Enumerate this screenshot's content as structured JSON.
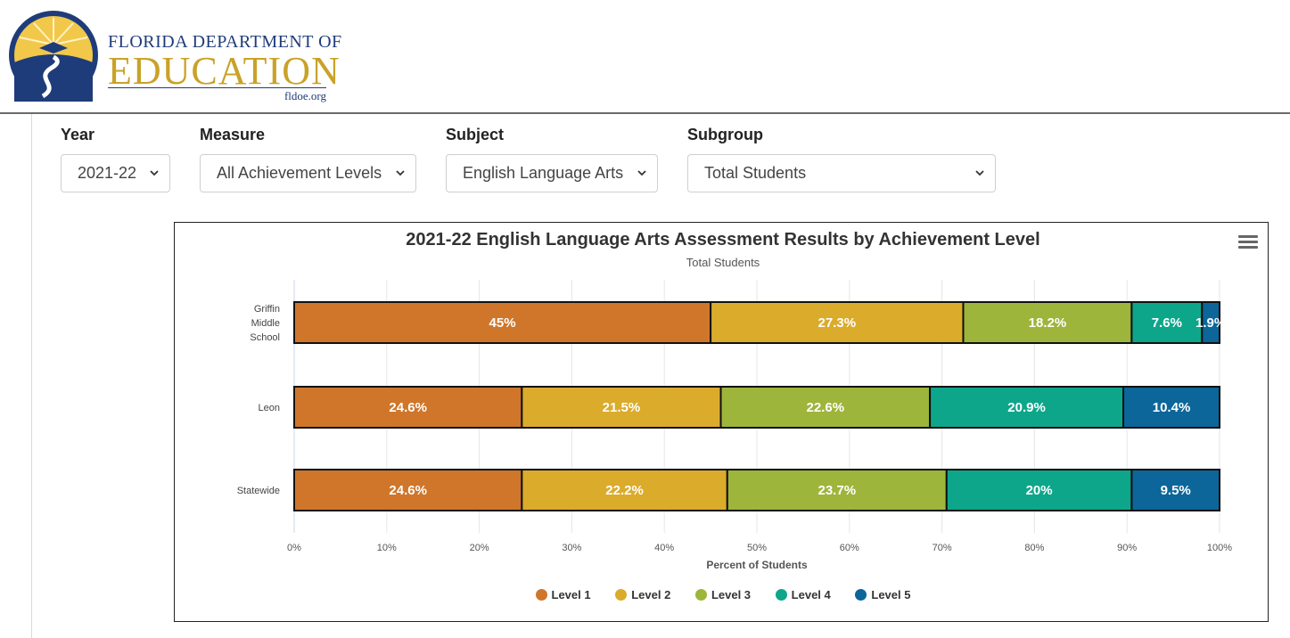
{
  "logo": {
    "line1": "FLORIDA DEPARTMENT OF",
    "line2": "EDUCATION",
    "line3": "fldoe.org"
  },
  "filters": [
    {
      "label": "Year",
      "value": "2021-22"
    },
    {
      "label": "Measure",
      "value": "All Achievement Levels"
    },
    {
      "label": "Subject",
      "value": "English Language Arts"
    },
    {
      "label": "Subgroup",
      "value": "Total Students"
    }
  ],
  "colors": {
    "level1": "#cf762b",
    "level2": "#dbab2b",
    "level3": "#9db53b",
    "level4": "#0ea68a",
    "level5": "#0c6699"
  },
  "chart_data": {
    "type": "bar",
    "orientation": "horizontal",
    "stacked": true,
    "title": "2021-22 English Language Arts Assessment Results by Achievement Level",
    "subtitle": "Total Students",
    "xlabel": "Percent of Students",
    "ylabel": "",
    "xlim": [
      0,
      100
    ],
    "x_ticks": [
      "0%",
      "10%",
      "20%",
      "30%",
      "40%",
      "50%",
      "60%",
      "70%",
      "80%",
      "90%",
      "100%"
    ],
    "categories": [
      [
        "Griffin",
        "Middle",
        "School"
      ],
      [
        "Leon"
      ],
      [
        "Statewide"
      ]
    ],
    "series": [
      {
        "name": "Level 1",
        "values": [
          45,
          24.6,
          24.6
        ],
        "labels": [
          "45%",
          "24.6%",
          "24.6%"
        ]
      },
      {
        "name": "Level 2",
        "values": [
          27.3,
          21.5,
          22.2
        ],
        "labels": [
          "27.3%",
          "21.5%",
          "22.2%"
        ]
      },
      {
        "name": "Level 3",
        "values": [
          18.2,
          22.6,
          23.7
        ],
        "labels": [
          "18.2%",
          "22.6%",
          "23.7%"
        ]
      },
      {
        "name": "Level 4",
        "values": [
          7.6,
          20.9,
          20
        ],
        "labels": [
          "7.6%",
          "20.9%",
          "20%"
        ]
      },
      {
        "name": "Level 5",
        "values": [
          1.9,
          10.4,
          9.5
        ],
        "labels": [
          "1.9%",
          "10.4%",
          "9.5%"
        ]
      }
    ],
    "legend_position": "bottom",
    "grid": true
  }
}
